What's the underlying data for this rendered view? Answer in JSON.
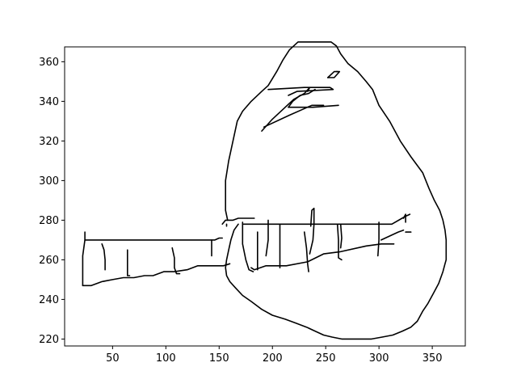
{
  "chart_data": {
    "type": "line",
    "title": "",
    "xlabel": "",
    "ylabel": "",
    "xlim": [
      5,
      381
    ],
    "ylim": [
      216.5,
      367.5
    ],
    "xticks": [
      50,
      100,
      150,
      200,
      250,
      300,
      350
    ],
    "yticks": [
      220,
      240,
      260,
      280,
      300,
      320,
      340,
      360
    ],
    "grid": false,
    "legend": "none",
    "line_color": "#000000",
    "series": [
      {
        "values": [
          [
            153,
            278
          ],
          [
            156,
            280
          ],
          [
            163,
            280
          ],
          [
            168,
            281
          ],
          [
            183,
            281
          ]
        ]
      },
      {
        "values": [
          [
            157,
            278
          ],
          [
            157,
            277
          ]
        ]
      },
      {
        "values": [
          [
            158,
            280
          ],
          [
            156,
            285
          ],
          [
            156,
            300
          ],
          [
            159,
            310
          ],
          [
            163,
            320
          ],
          [
            167,
            330
          ],
          [
            172,
            335
          ],
          [
            180,
            340
          ],
          [
            190,
            345
          ],
          [
            196,
            348
          ],
          [
            204,
            355
          ],
          [
            210,
            361
          ],
          [
            216,
            366
          ],
          [
            224,
            370
          ],
          [
            236,
            370
          ],
          [
            255,
            370
          ],
          [
            260,
            368
          ],
          [
            264,
            364
          ],
          [
            271,
            359
          ],
          [
            280,
            355
          ],
          [
            288,
            350
          ],
          [
            294,
            346
          ],
          [
            300,
            338
          ],
          [
            310,
            330
          ],
          [
            320,
            320
          ],
          [
            330,
            312
          ],
          [
            341,
            304
          ],
          [
            347,
            296
          ],
          [
            352,
            290
          ],
          [
            357,
            285
          ],
          [
            360,
            280
          ],
          [
            362,
            275
          ],
          [
            363,
            270
          ],
          [
            363,
            265
          ],
          [
            363,
            260
          ],
          [
            362,
            258
          ],
          [
            360,
            254
          ],
          [
            356,
            248
          ],
          [
            351,
            243
          ],
          [
            346,
            238
          ],
          [
            341,
            234
          ],
          [
            336,
            229
          ],
          [
            330,
            226
          ],
          [
            322,
            224
          ],
          [
            313,
            222
          ],
          [
            303,
            221
          ],
          [
            293,
            220
          ],
          [
            282,
            220
          ],
          [
            273,
            220
          ],
          [
            265,
            220
          ],
          [
            256,
            221
          ],
          [
            248,
            222
          ],
          [
            240,
            224
          ],
          [
            232,
            226
          ],
          [
            222,
            228
          ],
          [
            212,
            230
          ],
          [
            200,
            232
          ],
          [
            190,
            235
          ],
          [
            180,
            239
          ],
          [
            172,
            242
          ],
          [
            165,
            246
          ],
          [
            160,
            249
          ],
          [
            157,
            252
          ],
          [
            156,
            256
          ],
          [
            157,
            260
          ],
          [
            159,
            265
          ],
          [
            161,
            270
          ],
          [
            164,
            275
          ],
          [
            168,
            278
          ]
        ]
      },
      {
        "values": [
          [
            22,
            247
          ],
          [
            22,
            255
          ],
          [
            22,
            262
          ],
          [
            24,
            270
          ]
        ]
      },
      {
        "values": [
          [
            24,
            274
          ],
          [
            24,
            270
          ],
          [
            146,
            270
          ],
          [
            150,
            271
          ],
          [
            153,
            271
          ]
        ]
      },
      {
        "values": [
          [
            22,
            247
          ],
          [
            30,
            247
          ],
          [
            40,
            249
          ],
          [
            50,
            250
          ],
          [
            60,
            251
          ],
          [
            70,
            251
          ],
          [
            80,
            252
          ],
          [
            88,
            252
          ],
          [
            98,
            254
          ],
          [
            108,
            254
          ],
          [
            120,
            255
          ],
          [
            130,
            257
          ],
          [
            145,
            257
          ],
          [
            154,
            257
          ],
          [
            160,
            258
          ]
        ]
      },
      {
        "values": [
          [
            40,
            268
          ],
          [
            42,
            265
          ],
          [
            43,
            260
          ],
          [
            43,
            255
          ]
        ]
      },
      {
        "values": [
          [
            64,
            265
          ],
          [
            64,
            258
          ],
          [
            64,
            252
          ],
          [
            66,
            252
          ]
        ]
      },
      {
        "values": [
          [
            106,
            266
          ],
          [
            108,
            261
          ],
          [
            108,
            256
          ],
          [
            110,
            253
          ],
          [
            113,
            253
          ]
        ]
      },
      {
        "values": [
          [
            143,
            270
          ],
          [
            143,
            262
          ]
        ]
      },
      {
        "values": [
          [
            172,
            279
          ],
          [
            172,
            268
          ],
          [
            175,
            260
          ],
          [
            178,
            255
          ],
          [
            182,
            254
          ]
        ]
      },
      {
        "values": [
          [
            173,
            278
          ],
          [
            250,
            278
          ],
          [
            300,
            278
          ],
          [
            312,
            278
          ],
          [
            325,
            282
          ],
          [
            329,
            283
          ]
        ]
      },
      {
        "values": [
          [
            180,
            256
          ],
          [
            183,
            255
          ],
          [
            194,
            257
          ],
          [
            213,
            257
          ],
          [
            233,
            259
          ],
          [
            248,
            263
          ],
          [
            263,
            264
          ],
          [
            288,
            267
          ],
          [
            302,
            268
          ],
          [
            314,
            268
          ]
        ]
      },
      {
        "values": [
          [
            186,
            274
          ],
          [
            186,
            262
          ],
          [
            186,
            255
          ]
        ]
      },
      {
        "values": [
          [
            196,
            280
          ],
          [
            196,
            270
          ],
          [
            194,
            262
          ]
        ]
      },
      {
        "values": [
          [
            207,
            278
          ],
          [
            207,
            267
          ],
          [
            207,
            256
          ]
        ]
      },
      {
        "values": [
          [
            230,
            274
          ],
          [
            232,
            266
          ],
          [
            233,
            258
          ],
          [
            234,
            254
          ]
        ]
      },
      {
        "values": [
          [
            236,
            277
          ],
          [
            237,
            285
          ],
          [
            239,
            286
          ],
          [
            239,
            278
          ],
          [
            238,
            270
          ],
          [
            235,
            263
          ]
        ]
      },
      {
        "values": [
          [
            261,
            278
          ],
          [
            262,
            270
          ],
          [
            262,
            261
          ],
          [
            265,
            260
          ]
        ]
      },
      {
        "values": [
          [
            264,
            278
          ],
          [
            265,
            271
          ],
          [
            264,
            266
          ]
        ]
      },
      {
        "values": [
          [
            300,
            279
          ],
          [
            300,
            270
          ],
          [
            299,
            262
          ]
        ]
      },
      {
        "values": [
          [
            302,
            270
          ],
          [
            318,
            274
          ],
          [
            323,
            275
          ]
        ]
      },
      {
        "values": [
          [
            323,
            281
          ],
          [
            325,
            283
          ],
          [
            325,
            279
          ]
        ]
      },
      {
        "values": [
          [
            325,
            274
          ],
          [
            330,
            274
          ]
        ]
      },
      {
        "values": [
          [
            196,
            346
          ],
          [
            230,
            347
          ],
          [
            254,
            347
          ],
          [
            257,
            346
          ],
          [
            223,
            345
          ],
          [
            215,
            343
          ]
        ]
      },
      {
        "values": [
          [
            215,
            337
          ],
          [
            219,
            340
          ],
          [
            226,
            343
          ],
          [
            234,
            344
          ],
          [
            240,
            346
          ]
        ]
      },
      {
        "values": [
          [
            252,
            352
          ],
          [
            258,
            352
          ],
          [
            263,
            355
          ],
          [
            260,
            355
          ]
        ]
      },
      {
        "values": [
          [
            215,
            337
          ],
          [
            238,
            337
          ],
          [
            262,
            338
          ]
        ]
      },
      {
        "values": [
          [
            190,
            325
          ],
          [
            200,
            331
          ],
          [
            210,
            336
          ],
          [
            220,
            341
          ],
          [
            230,
            344
          ],
          [
            235,
            347
          ],
          [
            233,
            345
          ]
        ]
      },
      {
        "values": [
          [
            192,
            327
          ],
          [
            216,
            333
          ],
          [
            237,
            338
          ],
          [
            248,
            338
          ]
        ]
      },
      {
        "values": [
          [
            252,
            352
          ],
          [
            258,
            355
          ],
          [
            261,
            355
          ]
        ]
      }
    ]
  }
}
